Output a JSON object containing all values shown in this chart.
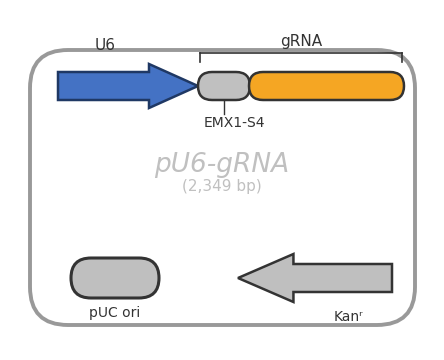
{
  "title": "pU6-gRNA",
  "subtitle": "(2,349 bp)",
  "bg_color": "#ffffff",
  "plasmid_border_color": "#999999",
  "plasmid_text_color": "#c0c0c0",
  "u6_label": "U6",
  "grna_label": "gRNA",
  "emx1_label": "EMX1-S4",
  "kanr_label": "Kanʳ",
  "puc_label": "pUC ori",
  "u6_arrow_color": "#4472c4",
  "u6_arrow_edge": "#1f3864",
  "grna_rect_color": "#f5a623",
  "grna_rect_edge": "#333333",
  "scaffold_rect_color": "#c0c0c0",
  "scaffold_rect_edge": "#333333",
  "kanr_arrow_color": "#bfbfbf",
  "kanr_arrow_edge": "#333333",
  "puc_ellipse_color": "#bfbfbf",
  "puc_ellipse_edge": "#333333",
  "bracket_color": "#333333",
  "label_color": "#333333"
}
